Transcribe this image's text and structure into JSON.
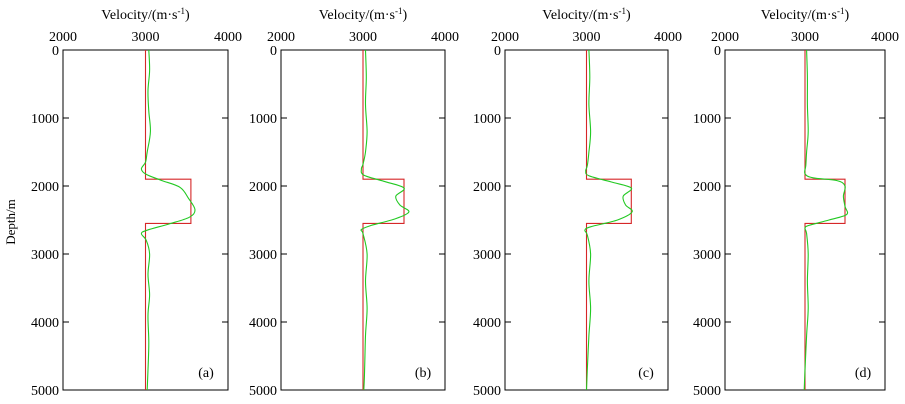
{
  "figure": {
    "ylabel": "Depth/m"
  },
  "colors": {
    "true_model": "#d62728",
    "inverted": "#22c922"
  },
  "chart_data": [
    {
      "type": "line",
      "panel_label": "(a)",
      "xlabel_prefix": "Velocity/(m·s",
      "xlabel_sup": "-1",
      "xlabel_suffix": ")",
      "xlim": [
        2000,
        4000
      ],
      "xticks": [
        "2000",
        "3000",
        "4000"
      ],
      "ylim": [
        0,
        5000
      ],
      "yticks": [
        "0",
        "1000",
        "2000",
        "3000",
        "4000",
        "5000"
      ],
      "grid": false,
      "series": [
        {
          "role": "true",
          "points": [
            [
              3000,
              0
            ],
            [
              3000,
              1900
            ],
            [
              3550,
              1900
            ],
            [
              3550,
              2550
            ],
            [
              3000,
              2550
            ],
            [
              3000,
              5000
            ]
          ]
        },
        {
          "role": "inverted",
          "points": [
            [
              3040,
              0
            ],
            [
              3050,
              300
            ],
            [
              3030,
              600
            ],
            [
              3040,
              900
            ],
            [
              3060,
              1200
            ],
            [
              3020,
              1500
            ],
            [
              3000,
              1650
            ],
            [
              2950,
              1750
            ],
            [
              3010,
              1830
            ],
            [
              3200,
              1920
            ],
            [
              3420,
              2020
            ],
            [
              3520,
              2180
            ],
            [
              3600,
              2350
            ],
            [
              3530,
              2460
            ],
            [
              3280,
              2560
            ],
            [
              3020,
              2650
            ],
            [
              2950,
              2700
            ],
            [
              3010,
              2800
            ],
            [
              3050,
              3000
            ],
            [
              3030,
              3300
            ],
            [
              3050,
              3600
            ],
            [
              3030,
              3900
            ],
            [
              3040,
              4300
            ],
            [
              3030,
              4700
            ],
            [
              3020,
              5000
            ]
          ]
        }
      ]
    },
    {
      "type": "line",
      "panel_label": "(b)",
      "xlabel_prefix": "Velocity/(m·s",
      "xlabel_sup": "-1",
      "xlabel_suffix": ")",
      "xlim": [
        2000,
        4000
      ],
      "xticks": [
        "2000",
        "3000",
        "4000"
      ],
      "ylim": [
        0,
        5000
      ],
      "yticks": [
        "0",
        "1000",
        "2000",
        "3000",
        "4000",
        "5000"
      ],
      "grid": false,
      "series": [
        {
          "role": "true",
          "points": [
            [
              3000,
              0
            ],
            [
              3000,
              1900
            ],
            [
              3500,
              1900
            ],
            [
              3500,
              2550
            ],
            [
              3000,
              2550
            ],
            [
              3000,
              5000
            ]
          ]
        },
        {
          "role": "inverted",
          "points": [
            [
              3030,
              0
            ],
            [
              3040,
              400
            ],
            [
              3030,
              800
            ],
            [
              3050,
              1200
            ],
            [
              3030,
              1500
            ],
            [
              3000,
              1680
            ],
            [
              2980,
              1750
            ],
            [
              3010,
              1840
            ],
            [
              3250,
              1930
            ],
            [
              3500,
              2030
            ],
            [
              3400,
              2150
            ],
            [
              3450,
              2280
            ],
            [
              3560,
              2380
            ],
            [
              3400,
              2480
            ],
            [
              3100,
              2580
            ],
            [
              2980,
              2640
            ],
            [
              3000,
              2700
            ],
            [
              3050,
              3000
            ],
            [
              3030,
              3400
            ],
            [
              3050,
              3800
            ],
            [
              3030,
              4200
            ],
            [
              3020,
              4700
            ],
            [
              3010,
              5000
            ]
          ]
        }
      ]
    },
    {
      "type": "line",
      "panel_label": "(c)",
      "xlabel_prefix": "Velocity/(m·s",
      "xlabel_sup": "-1",
      "xlabel_suffix": ")",
      "xlim": [
        2000,
        4000
      ],
      "xticks": [
        "2000",
        "3000",
        "4000"
      ],
      "ylim": [
        0,
        5000
      ],
      "yticks": [
        "0",
        "1000",
        "2000",
        "3000",
        "4000",
        "5000"
      ],
      "grid": false,
      "series": [
        {
          "role": "true",
          "points": [
            [
              3000,
              0
            ],
            [
              3000,
              1900
            ],
            [
              3550,
              1900
            ],
            [
              3550,
              2550
            ],
            [
              3000,
              2550
            ],
            [
              3000,
              5000
            ]
          ]
        },
        {
          "role": "inverted",
          "points": [
            [
              3030,
              0
            ],
            [
              3040,
              400
            ],
            [
              3030,
              800
            ],
            [
              3050,
              1200
            ],
            [
              3030,
              1500
            ],
            [
              3010,
              1700
            ],
            [
              2990,
              1780
            ],
            [
              3030,
              1850
            ],
            [
              3300,
              1940
            ],
            [
              3550,
              2030
            ],
            [
              3450,
              2150
            ],
            [
              3480,
              2280
            ],
            [
              3560,
              2380
            ],
            [
              3380,
              2500
            ],
            [
              3050,
              2600
            ],
            [
              2980,
              2650
            ],
            [
              3010,
              2720
            ],
            [
              3050,
              3000
            ],
            [
              3030,
              3400
            ],
            [
              3050,
              3800
            ],
            [
              3030,
              4200
            ],
            [
              3010,
              4700
            ],
            [
              3000,
              5000
            ]
          ]
        }
      ]
    },
    {
      "type": "line",
      "panel_label": "(d)",
      "xlabel_prefix": "Velocity/(m·s",
      "xlabel_sup": "-1",
      "xlabel_suffix": ")",
      "xlim": [
        2000,
        4000
      ],
      "xticks": [
        "2000",
        "3000",
        "4000"
      ],
      "ylim": [
        0,
        5000
      ],
      "yticks": [
        "0",
        "1000",
        "2000",
        "3000",
        "4000",
        "5000"
      ],
      "grid": false,
      "series": [
        {
          "role": "true",
          "points": [
            [
              3000,
              0
            ],
            [
              3000,
              1900
            ],
            [
              3500,
              1900
            ],
            [
              3500,
              2550
            ],
            [
              3000,
              2550
            ],
            [
              3000,
              5000
            ]
          ]
        },
        {
          "role": "inverted",
          "points": [
            [
              3020,
              0
            ],
            [
              3030,
              400
            ],
            [
              3030,
              800
            ],
            [
              3040,
              1200
            ],
            [
              3020,
              1500
            ],
            [
              3010,
              1700
            ],
            [
              3000,
              1820
            ],
            [
              3100,
              1880
            ],
            [
              3400,
              1920
            ],
            [
              3500,
              2000
            ],
            [
              3480,
              2150
            ],
            [
              3500,
              2300
            ],
            [
              3520,
              2420
            ],
            [
              3300,
              2500
            ],
            [
              3050,
              2580
            ],
            [
              3000,
              2620
            ],
            [
              3020,
              2700
            ],
            [
              3040,
              3000
            ],
            [
              3030,
              3400
            ],
            [
              3040,
              3800
            ],
            [
              3020,
              4200
            ],
            [
              3000,
              4700
            ],
            [
              2990,
              5000
            ]
          ]
        }
      ]
    }
  ]
}
